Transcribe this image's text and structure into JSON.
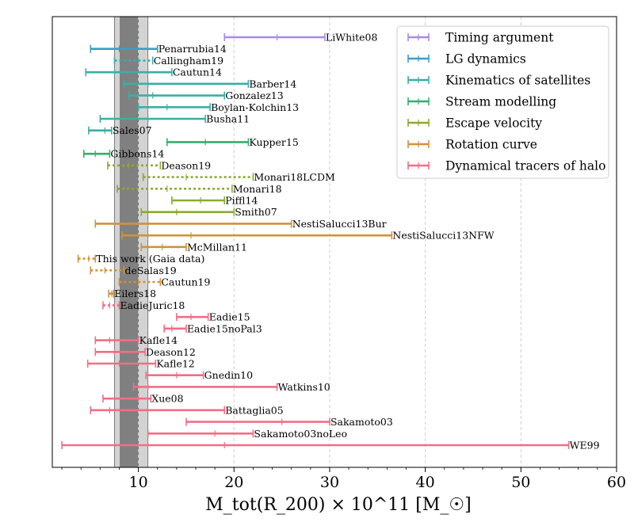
{
  "chart_data": {
    "type": "interval",
    "xlabel": "M_tot(R_200) × 10^11 [M_☉]",
    "xlim": [
      1,
      60
    ],
    "xticks": [
      10,
      20,
      30,
      40,
      50,
      60
    ],
    "grid": "vertical dashed at major ticks",
    "bands": [
      {
        "name": "outer",
        "from": 7.5,
        "to": 11.0,
        "color": "#d3d3d3"
      },
      {
        "name": "inner",
        "from": 8.1,
        "to": 10.0,
        "color": "#808080"
      }
    ],
    "legend": {
      "placement": "upper-right",
      "entries": [
        {
          "label": "Timing argument",
          "color": "#a78bea"
        },
        {
          "label": "LG dynamics",
          "color": "#3a9ecb"
        },
        {
          "label": "Kinematics of satellites",
          "color": "#39aea8"
        },
        {
          "label": "Stream modelling",
          "color": "#35ad6f"
        },
        {
          "label": "Escape velocity",
          "color": "#8aab30"
        },
        {
          "label": "Rotation curve",
          "color": "#d1933a"
        },
        {
          "label": "Dynamical tracers of halo",
          "color": "#ef6f86"
        }
      ]
    },
    "series": [
      {
        "name": "LiWhite08",
        "low": 19.0,
        "mid": 24.5,
        "high": 29.5,
        "category": 0,
        "dotted": false
      },
      {
        "name": "Penarrubia14",
        "low": 5.0,
        "mid": 8.0,
        "high": 12.0,
        "category": 1,
        "dotted": false
      },
      {
        "name": "Callingham19",
        "low": 7.5,
        "mid": 10.0,
        "high": 11.5,
        "category": 2,
        "dotted": true
      },
      {
        "name": "Cautun14",
        "low": 4.5,
        "mid": 7.5,
        "high": 13.5,
        "category": 2,
        "dotted": false
      },
      {
        "name": "Barber14",
        "low": 8.5,
        "mid": 11.0,
        "high": 21.5,
        "category": 2,
        "dotted": false
      },
      {
        "name": "Gonzalez13",
        "low": 9.0,
        "mid": 11.5,
        "high": 19.0,
        "category": 2,
        "dotted": false
      },
      {
        "name": "Boylan-Kolchin13",
        "low": 10.0,
        "mid": 13.0,
        "high": 17.5,
        "category": 2,
        "dotted": false
      },
      {
        "name": "Busha11",
        "low": 6.0,
        "mid": 11.0,
        "high": 17.0,
        "category": 2,
        "dotted": false
      },
      {
        "name": "Sales07",
        "low": 4.8,
        "mid": 6.5,
        "high": 7.2,
        "category": 2,
        "dotted": false
      },
      {
        "name": "Kupper15",
        "low": 13.0,
        "mid": 17.0,
        "high": 21.5,
        "category": 3,
        "dotted": false
      },
      {
        "name": "Gibbons14",
        "low": 4.3,
        "mid": 5.5,
        "high": 7.0,
        "category": 3,
        "dotted": false
      },
      {
        "name": "Deason19",
        "low": 6.8,
        "mid": 9.0,
        "high": 12.3,
        "category": 4,
        "dotted": true
      },
      {
        "name": "Monari18LCDM",
        "low": 10.5,
        "mid": 15.0,
        "high": 22.0,
        "category": 4,
        "dotted": true
      },
      {
        "name": "Monari18",
        "low": 7.8,
        "mid": 13.0,
        "high": 19.8,
        "category": 4,
        "dotted": true
      },
      {
        "name": "Piffl14",
        "low": 13.5,
        "mid": 16.5,
        "high": 19.0,
        "category": 4,
        "dotted": false
      },
      {
        "name": "Smith07",
        "low": 10.3,
        "mid": 14.0,
        "high": 20.0,
        "category": 4,
        "dotted": false
      },
      {
        "name": "NestiSalucci13Bur",
        "low": 5.5,
        "mid": 11.0,
        "high": 26.0,
        "category": 5,
        "dotted": false
      },
      {
        "name": "NestiSalucci13NFW",
        "low": 8.3,
        "mid": 15.5,
        "high": 36.5,
        "category": 5,
        "dotted": false
      },
      {
        "name": "McMillan11",
        "low": 10.3,
        "mid": 12.5,
        "high": 15.0,
        "category": 5,
        "dotted": false
      },
      {
        "name": "This work (Gaia data)",
        "low": 3.7,
        "mid": 4.8,
        "high": 5.5,
        "category": 5,
        "dotted": true
      },
      {
        "name": "deSalas19",
        "low": 5.0,
        "mid": 6.5,
        "high": 8.5,
        "category": 5,
        "dotted": true
      },
      {
        "name": "Cautun19",
        "low": 8.0,
        "mid": 10.0,
        "high": 12.3,
        "category": 5,
        "dotted": true
      },
      {
        "name": "Eilers18",
        "low": 6.9,
        "mid": 7.2,
        "high": 7.4,
        "category": 5,
        "dotted": false
      },
      {
        "name": "EadieJuric18",
        "low": 6.3,
        "mid": 7.0,
        "high": 8.0,
        "category": 6,
        "dotted": true
      },
      {
        "name": "Eadie15",
        "low": 14.0,
        "mid": 15.5,
        "high": 17.3,
        "category": 6,
        "dotted": false
      },
      {
        "name": "Eadie15noPal3",
        "low": 12.7,
        "mid": 13.5,
        "high": 15.0,
        "category": 6,
        "dotted": false
      },
      {
        "name": "Kafle14",
        "low": 5.5,
        "mid": 7.0,
        "high": 10.0,
        "category": 6,
        "dotted": false
      },
      {
        "name": "Deason12",
        "low": 5.5,
        "mid": 7.5,
        "high": 10.7,
        "category": 6,
        "dotted": false
      },
      {
        "name": "Kafle12",
        "low": 4.7,
        "mid": 8.0,
        "high": 11.8,
        "category": 6,
        "dotted": false
      },
      {
        "name": "Gnedin10",
        "low": 10.8,
        "mid": 14.0,
        "high": 16.8,
        "category": 6,
        "dotted": false
      },
      {
        "name": "Watkins10",
        "low": 9.5,
        "mid": 11.0,
        "high": 24.5,
        "category": 6,
        "dotted": false
      },
      {
        "name": "Xue08",
        "low": 6.3,
        "mid": 10.0,
        "high": 11.3,
        "category": 6,
        "dotted": false
      },
      {
        "name": "Battaglia05",
        "low": 5.0,
        "mid": 7.0,
        "high": 19.0,
        "category": 6,
        "dotted": false
      },
      {
        "name": "Sakamoto03",
        "low": 15.0,
        "mid": 25.0,
        "high": 30.0,
        "category": 6,
        "dotted": false
      },
      {
        "name": "Sakamoto03noLeo",
        "low": 11.0,
        "mid": 18.0,
        "high": 22.0,
        "category": 6,
        "dotted": false
      },
      {
        "name": "WE99",
        "low": 2.0,
        "mid": 19.0,
        "high": 55.0,
        "category": 6,
        "dotted": false
      }
    ]
  }
}
